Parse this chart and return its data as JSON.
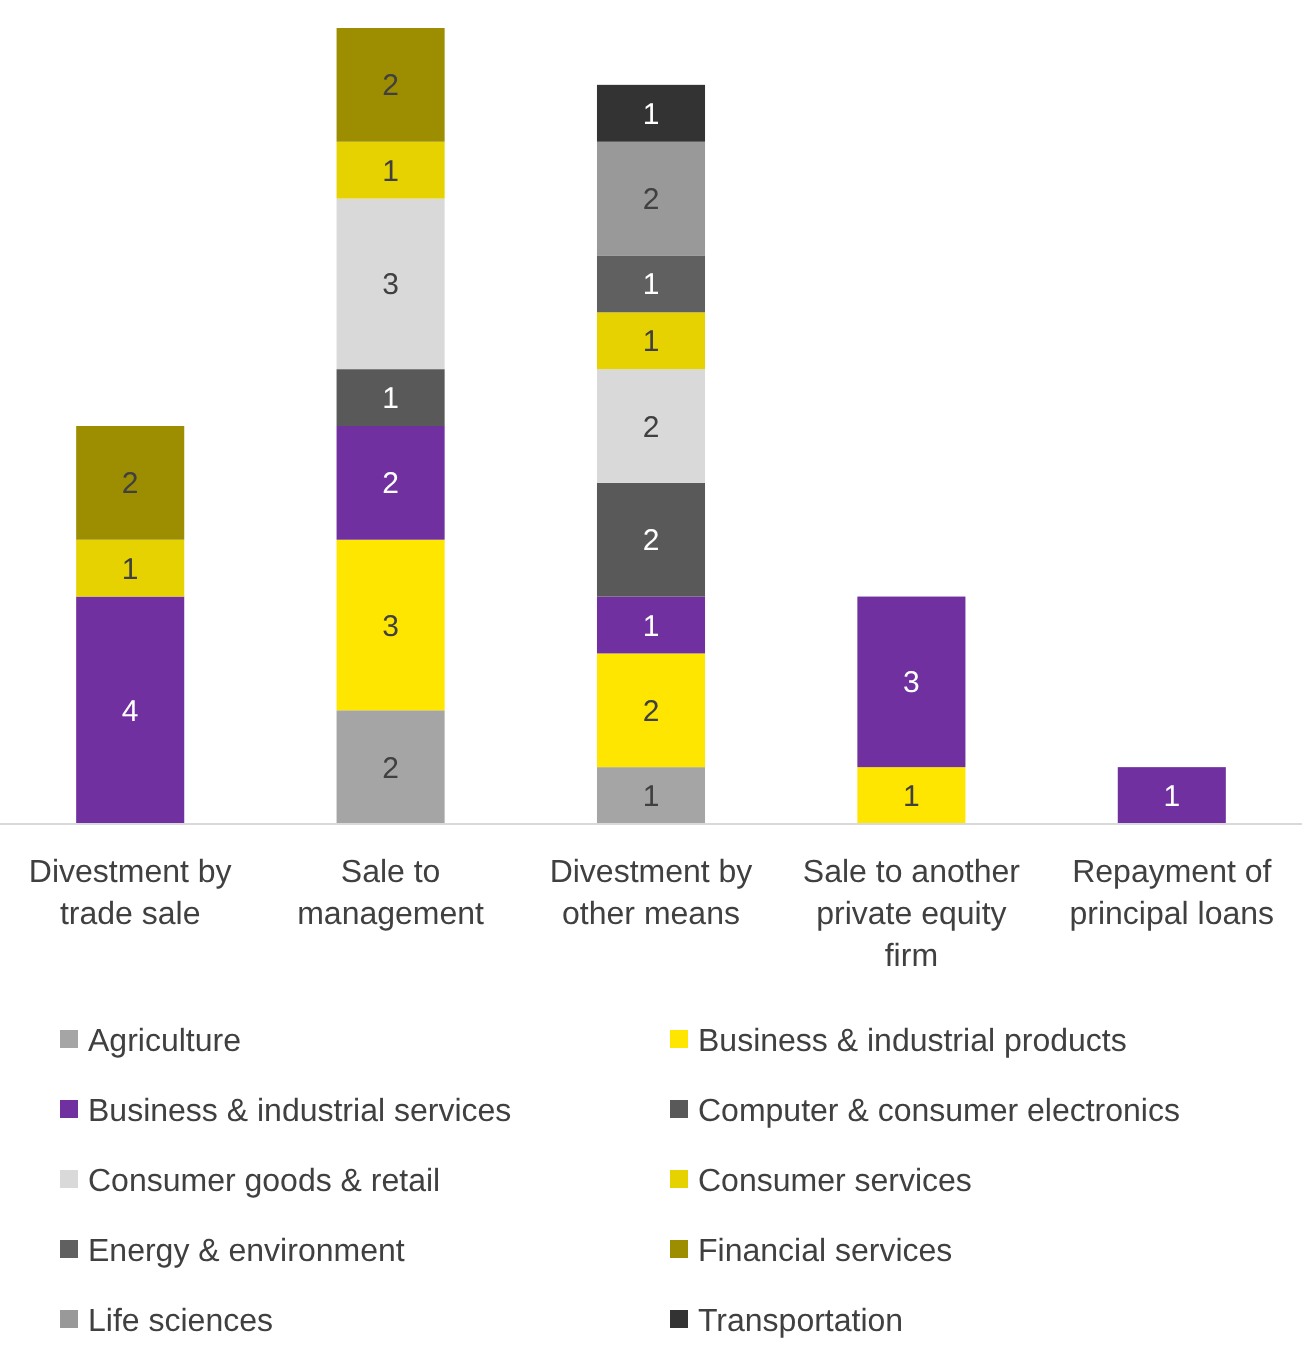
{
  "chart_data": {
    "type": "bar",
    "stacked": true,
    "data_labels": true,
    "legend": "bottom",
    "categories": [
      "Divestment by trade sale",
      "Sale to management",
      "Divestment by other means",
      "Sale to another private equity firm",
      "Repayment of principal loans"
    ],
    "series": [
      {
        "name": "Agriculture",
        "color": "#a5a5a5",
        "values": [
          null,
          2,
          1,
          null,
          null
        ]
      },
      {
        "name": "Business & industrial products",
        "color": "#ffe600",
        "values": [
          null,
          3,
          2,
          1,
          null
        ]
      },
      {
        "name": "Business & industrial services",
        "color": "#7030a0",
        "values": [
          4,
          2,
          1,
          3,
          1
        ]
      },
      {
        "name": "Computer & consumer electronics",
        "color": "#595959",
        "values": [
          null,
          1,
          2,
          null,
          null
        ]
      },
      {
        "name": "Consumer goods & retail",
        "color": "#d9d9d9",
        "values": [
          null,
          3,
          2,
          null,
          null
        ]
      },
      {
        "name": "Consumer services",
        "color": "#e6d200",
        "values": [
          1,
          1,
          1,
          null,
          null
        ]
      },
      {
        "name": "Energy & environment",
        "color": "#606060",
        "values": [
          null,
          null,
          1,
          null,
          null
        ]
      },
      {
        "name": "Financial services",
        "color": "#9c8e00",
        "values": [
          2,
          2,
          null,
          null,
          null
        ]
      },
      {
        "name": "Life sciences",
        "color": "#999999",
        "values": [
          null,
          null,
          2,
          null,
          null
        ]
      },
      {
        "name": "Transportation",
        "color": "#333333",
        "values": [
          null,
          null,
          1,
          null,
          null
        ]
      }
    ]
  }
}
